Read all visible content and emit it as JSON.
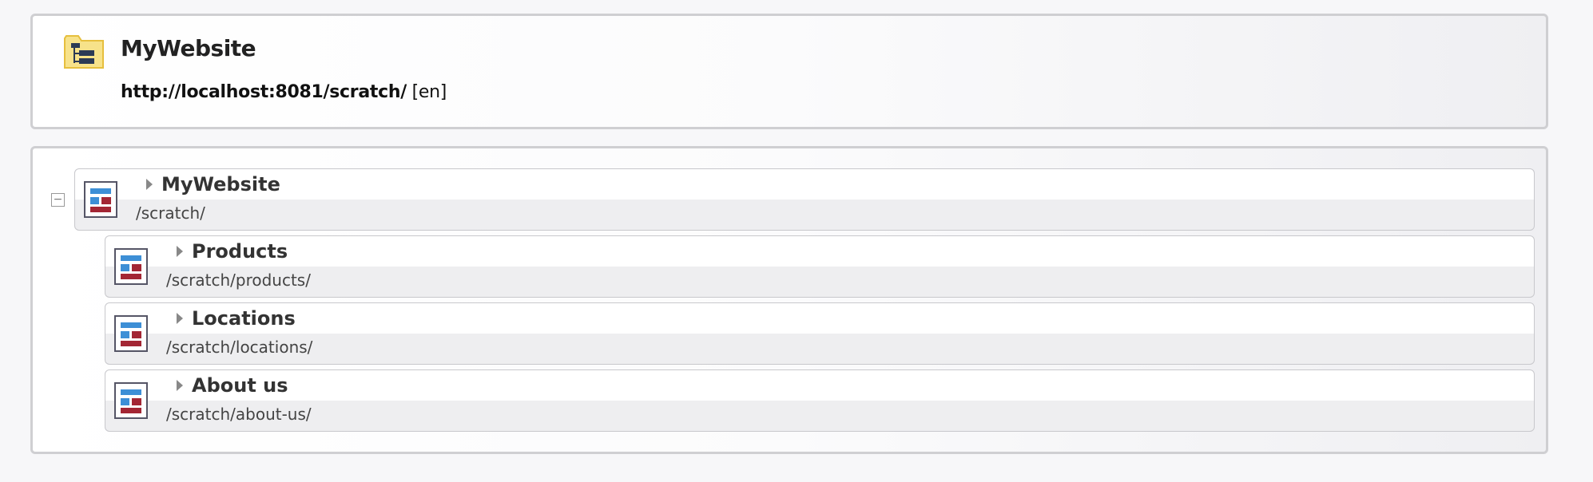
{
  "header": {
    "icon": "sitemap-folder-icon",
    "title": "MyWebsite",
    "url": "http://localhost:8081/scratch/",
    "language": "[en]"
  },
  "tree": {
    "root": {
      "name": "MyWebsite",
      "path": "/scratch/",
      "expanded": true
    },
    "children": [
      {
        "name": "Products",
        "path": "/scratch/products/"
      },
      {
        "name": "Locations",
        "path": "/scratch/locations/"
      },
      {
        "name": "About us",
        "path": "/scratch/about-us/"
      }
    ]
  },
  "colors": {
    "icon_blue": "#3d8fd6",
    "icon_red": "#a32634",
    "folder_yellow": "#f7e28a",
    "border": "#cfcfd2"
  }
}
